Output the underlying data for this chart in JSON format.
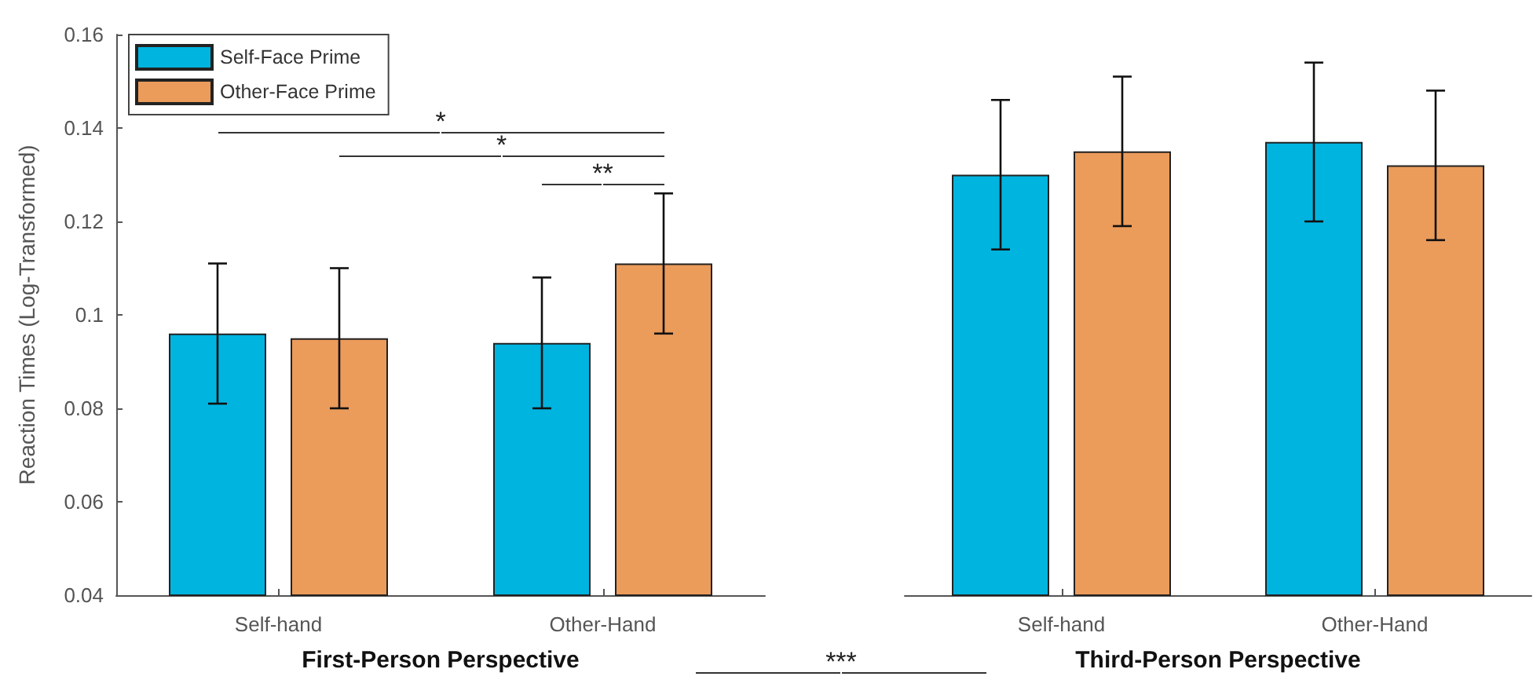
{
  "chart_data": [
    {
      "type": "bar",
      "ylabel": "Reaction Times (Log-Transformed)",
      "xlabel": "First-Person Perspective",
      "categories": [
        "Self-hand",
        "Other-Hand"
      ],
      "series": [
        {
          "name": "Self-Face Prime",
          "color": "#00b4e0",
          "values": [
            0.096,
            0.094
          ],
          "errors": [
            0.015,
            0.014
          ]
        },
        {
          "name": "Other-Face Prime",
          "color": "#eb9b5a",
          "values": [
            0.095,
            0.111
          ],
          "errors": [
            0.015,
            0.015
          ]
        }
      ],
      "ylim": [
        0.04,
        0.16
      ],
      "yticks": [
        0.04,
        0.06,
        0.08,
        0.1,
        0.12,
        0.14,
        0.16
      ],
      "grid": false,
      "legend": "top left",
      "annotations": [
        "*",
        "*",
        "**",
        "***"
      ]
    },
    {
      "type": "bar",
      "xlabel": "Third-Person Perspective",
      "categories": [
        "Self-hand",
        "Other-Hand"
      ],
      "series": [
        {
          "color": "#00b4e0",
          "values": [
            0.13,
            0.137
          ],
          "errors": [
            0.016,
            0.017
          ]
        },
        {
          "color": "#eb9b5a",
          "values": [
            0.135,
            0.132
          ],
          "errors": [
            0.016,
            0.016
          ]
        }
      ],
      "ylim": [
        0.04,
        0.16
      ],
      "yticks": [
        0.04,
        0.06,
        0.08,
        0.1,
        0.12,
        0.14,
        0.16
      ],
      "grid": false,
      "legend": false,
      "tick_labels": "x"
    }
  ]
}
